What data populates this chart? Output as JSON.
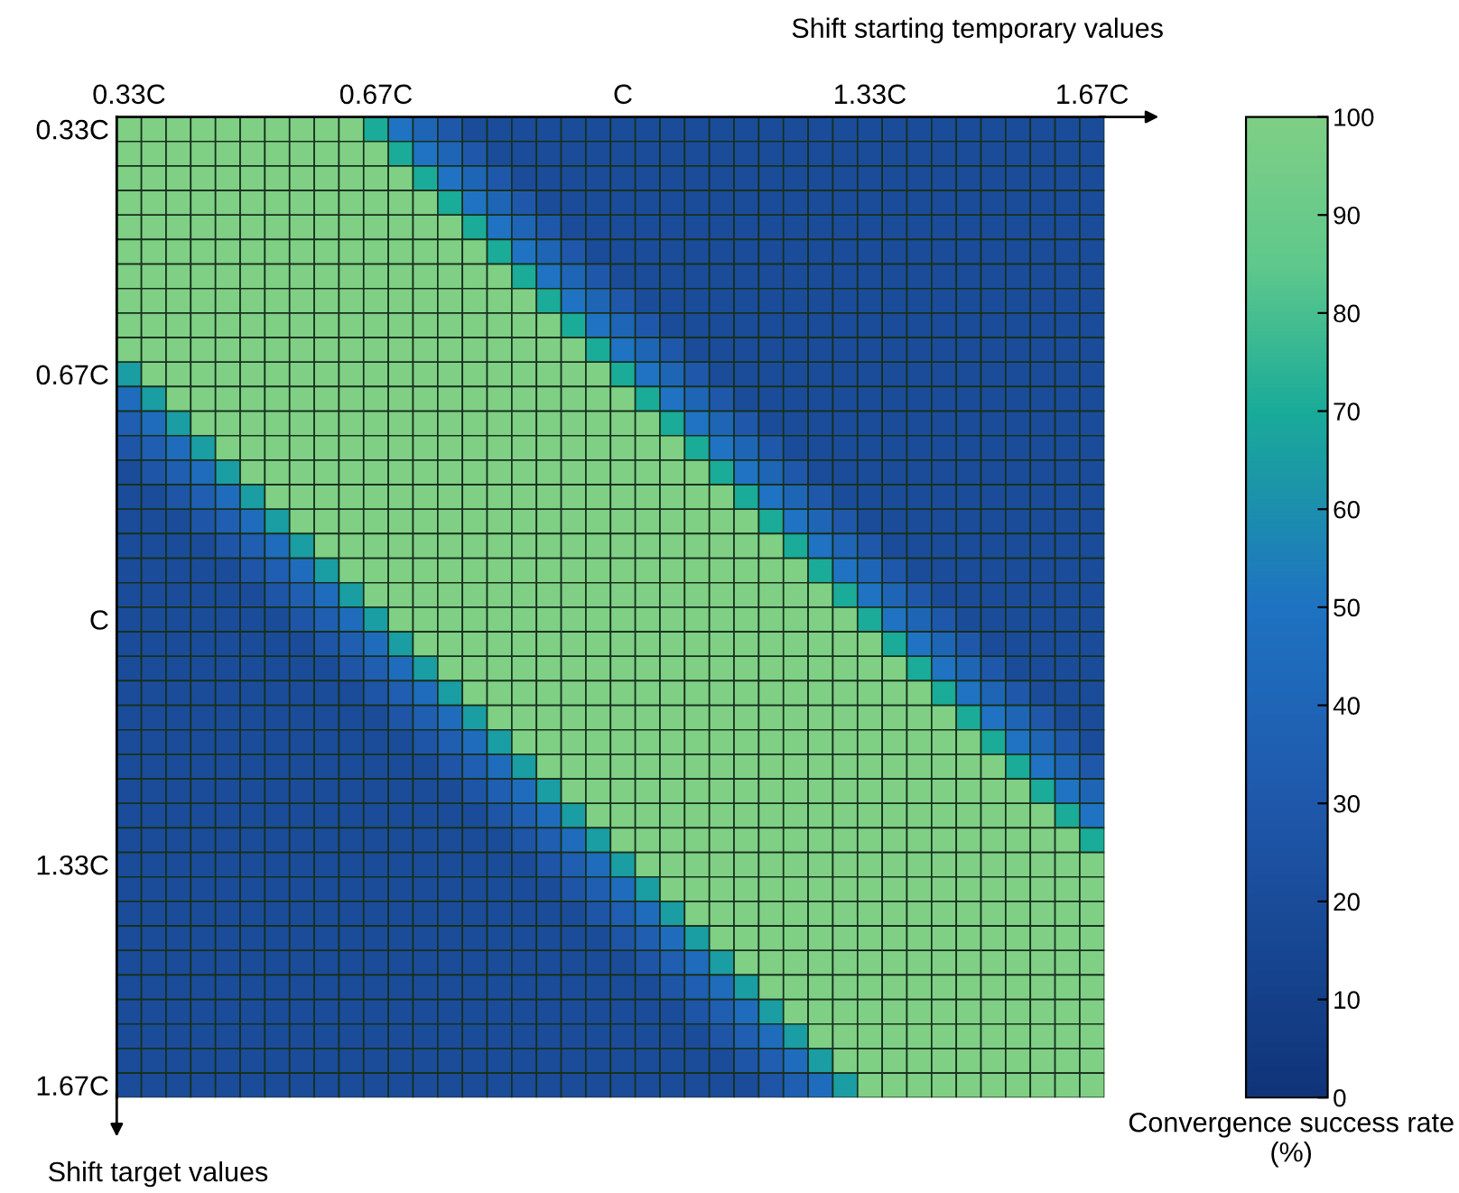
{
  "chart_data": {
    "type": "heatmap",
    "xlabel": "Shift starting temporary values",
    "ylabel": "Shift target values",
    "clabel": "Convergence success rate (%)",
    "categories": [
      "0.33C",
      null,
      null,
      null,
      null,
      null,
      null,
      null,
      null,
      null,
      "0.67C",
      null,
      null,
      null,
      null,
      null,
      null,
      null,
      null,
      null,
      "C",
      null,
      null,
      null,
      null,
      null,
      null,
      null,
      null,
      null,
      "1.33C",
      null,
      null,
      null,
      null,
      null,
      null,
      null,
      null,
      "1.67C"
    ],
    "y_categories": [
      "0.33C",
      null,
      null,
      null,
      null,
      null,
      null,
      null,
      null,
      null,
      "0.67C",
      null,
      null,
      null,
      null,
      null,
      null,
      null,
      null,
      null,
      "C",
      null,
      null,
      null,
      null,
      null,
      null,
      null,
      null,
      null,
      "1.33C",
      null,
      null,
      null,
      null,
      null,
      null,
      null,
      null,
      "1.67C"
    ],
    "clim": [
      0,
      100
    ],
    "cticks": [
      0,
      10,
      20,
      30,
      40,
      50,
      60,
      70,
      80,
      90,
      100
    ],
    "cells": [
      [
        100,
        100,
        100,
        100,
        100,
        100,
        100,
        100,
        100,
        100,
        70,
        50,
        40,
        30,
        20,
        20,
        20,
        20,
        20,
        20,
        20,
        20,
        20,
        20,
        20,
        20,
        20,
        20,
        20,
        20,
        20,
        20,
        20,
        20,
        20,
        20,
        20,
        20,
        20,
        20
      ],
      [
        100,
        100,
        100,
        100,
        100,
        100,
        100,
        100,
        100,
        100,
        100,
        70,
        50,
        40,
        30,
        20,
        20,
        20,
        20,
        20,
        20,
        20,
        20,
        20,
        20,
        20,
        20,
        20,
        20,
        20,
        20,
        20,
        20,
        20,
        20,
        20,
        20,
        20,
        20,
        20
      ],
      [
        100,
        100,
        100,
        100,
        100,
        100,
        100,
        100,
        100,
        100,
        100,
        100,
        70,
        50,
        40,
        30,
        20,
        20,
        20,
        20,
        20,
        20,
        20,
        20,
        20,
        20,
        20,
        20,
        20,
        20,
        20,
        20,
        20,
        20,
        20,
        20,
        20,
        20,
        20,
        20
      ],
      [
        100,
        100,
        100,
        100,
        100,
        100,
        100,
        100,
        100,
        100,
        100,
        100,
        100,
        70,
        50,
        40,
        30,
        20,
        20,
        20,
        20,
        20,
        20,
        20,
        20,
        20,
        20,
        20,
        20,
        20,
        20,
        20,
        20,
        20,
        20,
        20,
        20,
        20,
        20,
        20
      ],
      [
        100,
        100,
        100,
        100,
        100,
        100,
        100,
        100,
        100,
        100,
        100,
        100,
        100,
        100,
        70,
        50,
        40,
        30,
        20,
        20,
        20,
        20,
        20,
        20,
        20,
        20,
        20,
        20,
        20,
        20,
        20,
        20,
        20,
        20,
        20,
        20,
        20,
        20,
        20,
        20
      ],
      [
        100,
        100,
        100,
        100,
        100,
        100,
        100,
        100,
        100,
        100,
        100,
        100,
        100,
        100,
        100,
        70,
        50,
        40,
        30,
        20,
        20,
        20,
        20,
        20,
        20,
        20,
        20,
        20,
        20,
        20,
        20,
        20,
        20,
        20,
        20,
        20,
        20,
        20,
        20,
        20
      ],
      [
        100,
        100,
        100,
        100,
        100,
        100,
        100,
        100,
        100,
        100,
        100,
        100,
        100,
        100,
        100,
        100,
        70,
        50,
        40,
        30,
        20,
        20,
        20,
        20,
        20,
        20,
        20,
        20,
        20,
        20,
        20,
        20,
        20,
        20,
        20,
        20,
        20,
        20,
        20,
        20
      ],
      [
        100,
        100,
        100,
        100,
        100,
        100,
        100,
        100,
        100,
        100,
        100,
        100,
        100,
        100,
        100,
        100,
        100,
        70,
        50,
        40,
        30,
        20,
        20,
        20,
        20,
        20,
        20,
        20,
        20,
        20,
        20,
        20,
        20,
        20,
        20,
        20,
        20,
        20,
        20,
        20
      ],
      [
        100,
        100,
        100,
        100,
        100,
        100,
        100,
        100,
        100,
        100,
        100,
        100,
        100,
        100,
        100,
        100,
        100,
        100,
        70,
        50,
        40,
        30,
        20,
        20,
        20,
        20,
        20,
        20,
        20,
        20,
        20,
        20,
        20,
        20,
        20,
        20,
        20,
        20,
        20,
        20
      ],
      [
        100,
        100,
        100,
        100,
        100,
        100,
        100,
        100,
        100,
        100,
        100,
        100,
        100,
        100,
        100,
        100,
        100,
        100,
        100,
        70,
        50,
        40,
        30,
        20,
        20,
        20,
        20,
        20,
        20,
        20,
        20,
        20,
        20,
        20,
        20,
        20,
        20,
        20,
        20,
        20
      ],
      [
        65,
        100,
        100,
        100,
        100,
        100,
        100,
        100,
        100,
        100,
        100,
        100,
        100,
        100,
        100,
        100,
        100,
        100,
        100,
        100,
        70,
        50,
        40,
        30,
        20,
        20,
        20,
        20,
        20,
        20,
        20,
        20,
        20,
        20,
        20,
        20,
        20,
        20,
        20,
        20
      ],
      [
        45,
        65,
        100,
        100,
        100,
        100,
        100,
        100,
        100,
        100,
        100,
        100,
        100,
        100,
        100,
        100,
        100,
        100,
        100,
        100,
        100,
        70,
        50,
        40,
        30,
        20,
        20,
        20,
        20,
        20,
        20,
        20,
        20,
        20,
        20,
        20,
        20,
        20,
        20,
        20
      ],
      [
        35,
        45,
        65,
        100,
        100,
        100,
        100,
        100,
        100,
        100,
        100,
        100,
        100,
        100,
        100,
        100,
        100,
        100,
        100,
        100,
        100,
        100,
        70,
        50,
        40,
        30,
        20,
        20,
        20,
        20,
        20,
        20,
        20,
        20,
        20,
        20,
        20,
        20,
        20,
        20
      ],
      [
        28,
        35,
        45,
        65,
        100,
        100,
        100,
        100,
        100,
        100,
        100,
        100,
        100,
        100,
        100,
        100,
        100,
        100,
        100,
        100,
        100,
        100,
        100,
        70,
        50,
        40,
        30,
        20,
        20,
        20,
        20,
        20,
        20,
        20,
        20,
        20,
        20,
        20,
        20,
        20
      ],
      [
        20,
        28,
        35,
        45,
        65,
        100,
        100,
        100,
        100,
        100,
        100,
        100,
        100,
        100,
        100,
        100,
        100,
        100,
        100,
        100,
        100,
        100,
        100,
        100,
        70,
        50,
        40,
        30,
        20,
        20,
        20,
        20,
        20,
        20,
        20,
        20,
        20,
        20,
        20,
        20
      ],
      [
        20,
        20,
        28,
        35,
        45,
        65,
        100,
        100,
        100,
        100,
        100,
        100,
        100,
        100,
        100,
        100,
        100,
        100,
        100,
        100,
        100,
        100,
        100,
        100,
        100,
        70,
        50,
        40,
        30,
        20,
        20,
        20,
        20,
        20,
        20,
        20,
        20,
        20,
        20,
        20
      ],
      [
        20,
        20,
        20,
        28,
        35,
        45,
        65,
        100,
        100,
        100,
        100,
        100,
        100,
        100,
        100,
        100,
        100,
        100,
        100,
        100,
        100,
        100,
        100,
        100,
        100,
        100,
        70,
        50,
        40,
        30,
        20,
        20,
        20,
        20,
        20,
        20,
        20,
        20,
        20,
        20
      ],
      [
        20,
        20,
        20,
        20,
        28,
        35,
        45,
        65,
        100,
        100,
        100,
        100,
        100,
        100,
        100,
        100,
        100,
        100,
        100,
        100,
        100,
        100,
        100,
        100,
        100,
        100,
        100,
        70,
        50,
        40,
        30,
        20,
        20,
        20,
        20,
        20,
        20,
        20,
        20,
        20
      ],
      [
        20,
        20,
        20,
        20,
        20,
        28,
        35,
        45,
        65,
        100,
        100,
        100,
        100,
        100,
        100,
        100,
        100,
        100,
        100,
        100,
        100,
        100,
        100,
        100,
        100,
        100,
        100,
        100,
        70,
        50,
        40,
        30,
        20,
        20,
        20,
        20,
        20,
        20,
        20,
        20
      ],
      [
        20,
        20,
        20,
        20,
        20,
        20,
        28,
        35,
        45,
        65,
        100,
        100,
        100,
        100,
        100,
        100,
        100,
        100,
        100,
        100,
        100,
        100,
        100,
        100,
        100,
        100,
        100,
        100,
        100,
        70,
        50,
        40,
        30,
        20,
        20,
        20,
        20,
        20,
        20,
        20
      ],
      [
        20,
        20,
        20,
        20,
        20,
        20,
        20,
        28,
        35,
        45,
        65,
        100,
        100,
        100,
        100,
        100,
        100,
        100,
        100,
        100,
        100,
        100,
        100,
        100,
        100,
        100,
        100,
        100,
        100,
        100,
        70,
        50,
        40,
        30,
        20,
        20,
        20,
        20,
        20,
        20
      ],
      [
        20,
        20,
        20,
        20,
        20,
        20,
        20,
        20,
        28,
        35,
        45,
        65,
        100,
        100,
        100,
        100,
        100,
        100,
        100,
        100,
        100,
        100,
        100,
        100,
        100,
        100,
        100,
        100,
        100,
        100,
        100,
        70,
        50,
        40,
        30,
        20,
        20,
        20,
        20,
        20
      ],
      [
        20,
        20,
        20,
        20,
        20,
        20,
        20,
        20,
        20,
        28,
        35,
        45,
        65,
        100,
        100,
        100,
        100,
        100,
        100,
        100,
        100,
        100,
        100,
        100,
        100,
        100,
        100,
        100,
        100,
        100,
        100,
        100,
        70,
        50,
        40,
        30,
        20,
        20,
        20,
        20
      ],
      [
        20,
        20,
        20,
        20,
        20,
        20,
        20,
        20,
        20,
        20,
        28,
        35,
        45,
        65,
        100,
        100,
        100,
        100,
        100,
        100,
        100,
        100,
        100,
        100,
        100,
        100,
        100,
        100,
        100,
        100,
        100,
        100,
        100,
        70,
        50,
        40,
        30,
        20,
        20,
        20
      ],
      [
        20,
        20,
        20,
        20,
        20,
        20,
        20,
        20,
        20,
        20,
        20,
        28,
        35,
        45,
        65,
        100,
        100,
        100,
        100,
        100,
        100,
        100,
        100,
        100,
        100,
        100,
        100,
        100,
        100,
        100,
        100,
        100,
        100,
        100,
        70,
        50,
        40,
        30,
        20,
        20
      ],
      [
        20,
        20,
        20,
        20,
        20,
        20,
        20,
        20,
        20,
        20,
        20,
        20,
        28,
        35,
        45,
        65,
        100,
        100,
        100,
        100,
        100,
        100,
        100,
        100,
        100,
        100,
        100,
        100,
        100,
        100,
        100,
        100,
        100,
        100,
        100,
        70,
        50,
        40,
        30,
        20
      ],
      [
        20,
        20,
        20,
        20,
        20,
        20,
        20,
        20,
        20,
        20,
        20,
        20,
        20,
        28,
        35,
        45,
        65,
        100,
        100,
        100,
        100,
        100,
        100,
        100,
        100,
        100,
        100,
        100,
        100,
        100,
        100,
        100,
        100,
        100,
        100,
        100,
        70,
        50,
        40,
        30
      ],
      [
        20,
        20,
        20,
        20,
        20,
        20,
        20,
        20,
        20,
        20,
        20,
        20,
        20,
        20,
        28,
        35,
        45,
        65,
        100,
        100,
        100,
        100,
        100,
        100,
        100,
        100,
        100,
        100,
        100,
        100,
        100,
        100,
        100,
        100,
        100,
        100,
        100,
        70,
        50,
        40
      ],
      [
        20,
        20,
        20,
        20,
        20,
        20,
        20,
        20,
        20,
        20,
        20,
        20,
        20,
        20,
        20,
        28,
        35,
        45,
        65,
        100,
        100,
        100,
        100,
        100,
        100,
        100,
        100,
        100,
        100,
        100,
        100,
        100,
        100,
        100,
        100,
        100,
        100,
        100,
        70,
        50
      ],
      [
        20,
        20,
        20,
        20,
        20,
        20,
        20,
        20,
        20,
        20,
        20,
        20,
        20,
        20,
        20,
        20,
        28,
        35,
        45,
        65,
        100,
        100,
        100,
        100,
        100,
        100,
        100,
        100,
        100,
        100,
        100,
        100,
        100,
        100,
        100,
        100,
        100,
        100,
        100,
        70
      ],
      [
        20,
        20,
        20,
        20,
        20,
        20,
        20,
        20,
        20,
        20,
        20,
        20,
        20,
        20,
        20,
        20,
        20,
        28,
        35,
        45,
        65,
        100,
        100,
        100,
        100,
        100,
        100,
        100,
        100,
        100,
        100,
        100,
        100,
        100,
        100,
        100,
        100,
        100,
        100,
        100
      ],
      [
        20,
        20,
        20,
        20,
        20,
        20,
        20,
        20,
        20,
        20,
        20,
        20,
        20,
        20,
        20,
        20,
        20,
        20,
        28,
        35,
        45,
        65,
        100,
        100,
        100,
        100,
        100,
        100,
        100,
        100,
        100,
        100,
        100,
        100,
        100,
        100,
        100,
        100,
        100,
        100
      ],
      [
        20,
        20,
        20,
        20,
        20,
        20,
        20,
        20,
        20,
        20,
        20,
        20,
        20,
        20,
        20,
        20,
        20,
        20,
        20,
        28,
        35,
        45,
        65,
        100,
        100,
        100,
        100,
        100,
        100,
        100,
        100,
        100,
        100,
        100,
        100,
        100,
        100,
        100,
        100,
        100
      ],
      [
        20,
        20,
        20,
        20,
        20,
        20,
        20,
        20,
        20,
        20,
        20,
        20,
        20,
        20,
        20,
        20,
        20,
        20,
        20,
        20,
        28,
        35,
        45,
        65,
        100,
        100,
        100,
        100,
        100,
        100,
        100,
        100,
        100,
        100,
        100,
        100,
        100,
        100,
        100,
        100
      ],
      [
        20,
        20,
        20,
        20,
        20,
        20,
        20,
        20,
        20,
        20,
        20,
        20,
        20,
        20,
        20,
        20,
        20,
        20,
        20,
        20,
        20,
        28,
        35,
        45,
        65,
        100,
        100,
        100,
        100,
        100,
        100,
        100,
        100,
        100,
        100,
        100,
        100,
        100,
        100,
        100
      ],
      [
        20,
        20,
        20,
        20,
        20,
        20,
        20,
        20,
        20,
        20,
        20,
        20,
        20,
        20,
        20,
        20,
        20,
        20,
        20,
        20,
        20,
        20,
        28,
        35,
        45,
        65,
        100,
        100,
        100,
        100,
        100,
        100,
        100,
        100,
        100,
        100,
        100,
        100,
        100,
        100
      ],
      [
        20,
        20,
        20,
        20,
        20,
        20,
        20,
        20,
        20,
        20,
        20,
        20,
        20,
        20,
        20,
        20,
        20,
        20,
        20,
        20,
        20,
        20,
        20,
        28,
        35,
        45,
        65,
        100,
        100,
        100,
        100,
        100,
        100,
        100,
        100,
        100,
        100,
        100,
        100,
        100
      ],
      [
        20,
        20,
        20,
        20,
        20,
        20,
        20,
        20,
        20,
        20,
        20,
        20,
        20,
        20,
        20,
        20,
        20,
        20,
        20,
        20,
        20,
        20,
        20,
        20,
        28,
        35,
        45,
        65,
        100,
        100,
        100,
        100,
        100,
        100,
        100,
        100,
        100,
        100,
        100,
        100
      ],
      [
        20,
        20,
        20,
        20,
        20,
        20,
        20,
        20,
        20,
        20,
        20,
        20,
        20,
        20,
        20,
        20,
        20,
        20,
        20,
        20,
        20,
        20,
        20,
        20,
        20,
        28,
        35,
        45,
        65,
        100,
        100,
        100,
        100,
        100,
        100,
        100,
        100,
        100,
        100,
        100
      ],
      [
        20,
        20,
        20,
        20,
        20,
        20,
        20,
        20,
        20,
        20,
        20,
        20,
        20,
        20,
        20,
        20,
        20,
        20,
        20,
        20,
        20,
        20,
        20,
        20,
        20,
        20,
        28,
        35,
        45,
        65,
        100,
        100,
        100,
        100,
        100,
        100,
        100,
        100,
        100,
        100
      ]
    ]
  }
}
